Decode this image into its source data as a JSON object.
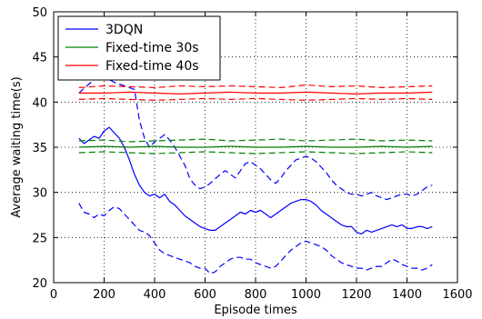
{
  "chart_data": {
    "type": "line",
    "xlabel": "Episode times",
    "ylabel": "Average waiting time(s)",
    "xlim": [
      0,
      1600
    ],
    "ylim": [
      20,
      50
    ],
    "xticks": [
      0,
      200,
      400,
      600,
      800,
      1000,
      1200,
      1400,
      1600
    ],
    "yticks": [
      20,
      25,
      30,
      35,
      40,
      45,
      50
    ],
    "grid": true,
    "grid_style": "dotted",
    "legend_position": "top-left",
    "series": [
      {
        "name": "3DQN",
        "color": "#0000ff",
        "style": "solid",
        "x": [
          100,
          120,
          140,
          160,
          180,
          200,
          220,
          240,
          260,
          280,
          300,
          320,
          340,
          360,
          380,
          400,
          420,
          440,
          460,
          480,
          500,
          520,
          540,
          560,
          580,
          600,
          620,
          640,
          660,
          680,
          700,
          720,
          740,
          760,
          780,
          800,
          820,
          840,
          860,
          880,
          900,
          920,
          940,
          960,
          980,
          1000,
          1020,
          1040,
          1060,
          1080,
          1100,
          1120,
          1140,
          1160,
          1180,
          1200,
          1220,
          1240,
          1260,
          1280,
          1300,
          1320,
          1340,
          1360,
          1380,
          1400,
          1420,
          1440,
          1460,
          1480,
          1500
        ],
        "y": [
          36.0,
          35.4,
          35.8,
          36.2,
          36.0,
          36.8,
          37.2,
          36.6,
          36.0,
          35.0,
          33.6,
          32.0,
          30.8,
          30.0,
          29.6,
          29.8,
          29.4,
          29.8,
          29.0,
          28.6,
          28.0,
          27.4,
          27.0,
          26.6,
          26.2,
          26.0,
          25.8,
          25.8,
          26.2,
          26.6,
          27.0,
          27.4,
          27.8,
          27.6,
          28.0,
          27.8,
          28.0,
          27.6,
          27.2,
          27.6,
          28.0,
          28.4,
          28.8,
          29.0,
          29.2,
          29.2,
          29.0,
          28.6,
          28.0,
          27.6,
          27.2,
          26.8,
          26.4,
          26.2,
          26.2,
          25.6,
          25.4,
          25.8,
          25.6,
          25.8,
          26.0,
          26.2,
          26.4,
          26.2,
          26.4,
          26.0,
          26.0,
          26.2,
          26.2,
          26.0,
          26.2
        ]
      },
      {
        "name": "",
        "color": "#0000ff",
        "style": "dashed",
        "x": [
          100,
          120,
          140,
          160,
          180,
          200,
          220,
          240,
          260,
          280,
          300,
          320,
          340,
          360,
          380,
          400,
          420,
          440,
          460,
          480,
          500,
          520,
          540,
          560,
          580,
          600,
          620,
          640,
          660,
          680,
          700,
          720,
          740,
          760,
          780,
          800,
          820,
          840,
          860,
          880,
          900,
          920,
          940,
          960,
          980,
          1000,
          1020,
          1040,
          1060,
          1080,
          1100,
          1120,
          1140,
          1160,
          1180,
          1200,
          1220,
          1240,
          1260,
          1280,
          1300,
          1320,
          1340,
          1360,
          1380,
          1400,
          1420,
          1440,
          1460,
          1480,
          1500
        ],
        "y": [
          41.0,
          41.5,
          42.0,
          42.5,
          43.0,
          43.0,
          42.5,
          42.2,
          42.0,
          41.8,
          41.6,
          41.4,
          38.0,
          36.0,
          35.0,
          35.6,
          36.0,
          36.4,
          35.8,
          35.0,
          34.0,
          33.0,
          31.5,
          30.8,
          30.4,
          30.6,
          31.0,
          31.5,
          32.0,
          32.4,
          32.0,
          31.6,
          32.4,
          33.2,
          33.4,
          33.0,
          32.6,
          32.0,
          31.4,
          31.0,
          31.6,
          32.4,
          33.0,
          33.6,
          33.8,
          34.0,
          33.8,
          33.4,
          32.8,
          32.2,
          31.4,
          30.8,
          30.4,
          30.0,
          29.8,
          29.8,
          29.6,
          29.8,
          30.0,
          29.6,
          29.4,
          29.2,
          29.4,
          29.6,
          29.8,
          29.8,
          29.6,
          29.8,
          30.2,
          30.6,
          30.8
        ]
      },
      {
        "name": "",
        "color": "#0000ff",
        "style": "dashed",
        "x": [
          100,
          120,
          140,
          160,
          180,
          200,
          220,
          240,
          260,
          280,
          300,
          320,
          340,
          360,
          380,
          400,
          420,
          440,
          460,
          480,
          500,
          520,
          540,
          560,
          580,
          600,
          620,
          640,
          660,
          680,
          700,
          720,
          740,
          760,
          780,
          800,
          820,
          840,
          860,
          880,
          900,
          920,
          940,
          960,
          980,
          1000,
          1020,
          1040,
          1060,
          1080,
          1100,
          1120,
          1140,
          1160,
          1180,
          1200,
          1220,
          1240,
          1260,
          1280,
          1300,
          1320,
          1340,
          1360,
          1380,
          1400,
          1420,
          1440,
          1460,
          1480,
          1500
        ],
        "y": [
          28.8,
          27.8,
          27.6,
          27.2,
          27.6,
          27.4,
          28.0,
          28.4,
          28.2,
          27.6,
          27.0,
          26.4,
          25.8,
          25.6,
          25.2,
          24.4,
          23.6,
          23.2,
          23.0,
          22.8,
          22.6,
          22.4,
          22.2,
          21.8,
          21.6,
          21.6,
          21.0,
          21.2,
          21.8,
          22.2,
          22.6,
          22.8,
          22.8,
          22.6,
          22.6,
          22.2,
          22.0,
          21.8,
          21.6,
          21.8,
          22.4,
          23.0,
          23.6,
          24.0,
          24.4,
          24.6,
          24.4,
          24.2,
          24.0,
          23.6,
          23.0,
          22.6,
          22.2,
          22.0,
          21.8,
          21.6,
          21.6,
          21.4,
          21.6,
          21.8,
          21.8,
          22.2,
          22.6,
          22.4,
          22.0,
          21.8,
          21.6,
          21.6,
          21.4,
          21.6,
          22.0
        ]
      },
      {
        "name": "Fixed-time 30s",
        "color": "#008000",
        "style": "solid",
        "x": [
          100,
          200,
          300,
          400,
          500,
          600,
          700,
          800,
          900,
          1000,
          1100,
          1200,
          1300,
          1400,
          1500
        ],
        "y": [
          35.0,
          35.1,
          35.0,
          35.1,
          35.0,
          35.0,
          35.1,
          35.0,
          35.0,
          35.1,
          35.0,
          35.0,
          35.1,
          35.0,
          35.1
        ]
      },
      {
        "name": "",
        "color": "#008000",
        "style": "dashed",
        "x": [
          100,
          200,
          300,
          400,
          500,
          600,
          700,
          800,
          900,
          1000,
          1100,
          1200,
          1300,
          1400,
          1500
        ],
        "y": [
          35.7,
          35.8,
          35.6,
          35.7,
          35.8,
          35.9,
          35.7,
          35.8,
          35.9,
          35.7,
          35.8,
          35.9,
          35.7,
          35.8,
          35.7
        ]
      },
      {
        "name": "",
        "color": "#008000",
        "style": "dashed",
        "x": [
          100,
          200,
          300,
          400,
          500,
          600,
          700,
          800,
          900,
          1000,
          1100,
          1200,
          1300,
          1400,
          1500
        ],
        "y": [
          34.4,
          34.5,
          34.4,
          34.3,
          34.4,
          34.5,
          34.4,
          34.3,
          34.4,
          34.5,
          34.4,
          34.3,
          34.4,
          34.5,
          34.4
        ]
      },
      {
        "name": "Fixed-time 40s",
        "color": "#ff0000",
        "style": "solid",
        "x": [
          100,
          200,
          300,
          400,
          500,
          600,
          700,
          800,
          900,
          1000,
          1100,
          1200,
          1300,
          1400,
          1500
        ],
        "y": [
          41.0,
          41.0,
          41.1,
          41.0,
          40.9,
          41.0,
          41.1,
          41.0,
          41.0,
          41.1,
          41.0,
          40.9,
          41.0,
          41.0,
          41.1
        ]
      },
      {
        "name": "",
        "color": "#ff0000",
        "style": "dashed",
        "x": [
          100,
          200,
          300,
          400,
          500,
          600,
          700,
          800,
          900,
          1000,
          1100,
          1200,
          1300,
          1400,
          1500
        ],
        "y": [
          41.6,
          41.8,
          41.7,
          41.6,
          41.8,
          41.7,
          41.8,
          41.7,
          41.6,
          41.9,
          41.7,
          41.8,
          41.6,
          41.7,
          41.8
        ]
      },
      {
        "name": "",
        "color": "#ff0000",
        "style": "dashed",
        "x": [
          100,
          200,
          300,
          400,
          500,
          600,
          700,
          800,
          900,
          1000,
          1100,
          1200,
          1300,
          1400,
          1500
        ],
        "y": [
          40.3,
          40.4,
          40.3,
          40.2,
          40.3,
          40.4,
          40.3,
          40.4,
          40.3,
          40.2,
          40.3,
          40.4,
          40.3,
          40.4,
          40.3
        ]
      }
    ]
  }
}
